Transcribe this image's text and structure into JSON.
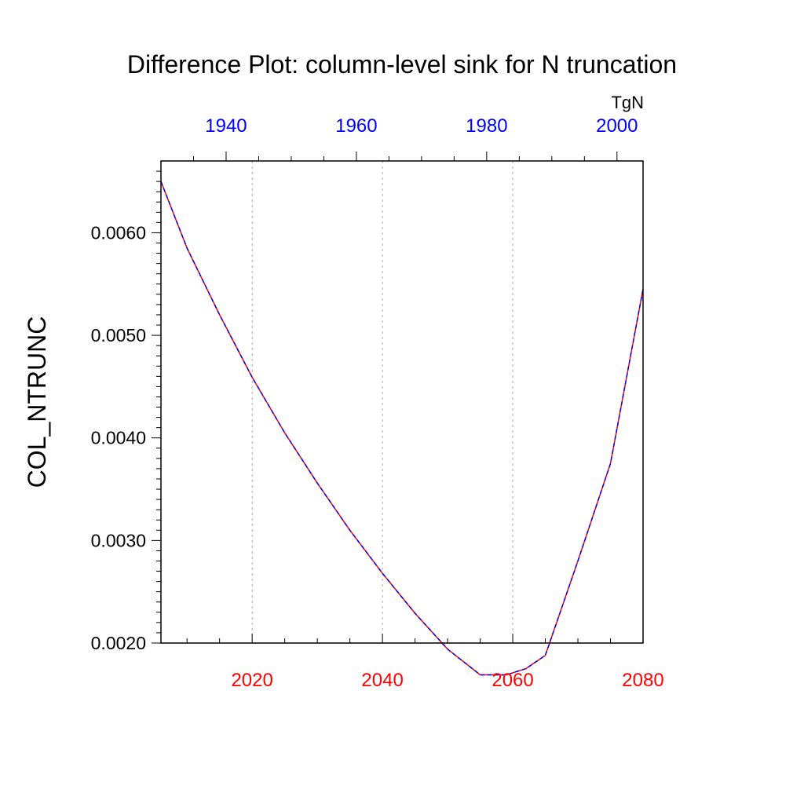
{
  "chart_data": {
    "type": "line",
    "title": "Difference Plot: column-level sink for N truncation",
    "ylabel": "COL_NTRUNC",
    "units": "TgN",
    "ylim": [
      0.002,
      0.0067
    ],
    "yticks": [
      "0.0020",
      "0.0030",
      "0.0040",
      "0.0050",
      "0.0060"
    ],
    "bottom_axis": {
      "xlim": [
        2006,
        2080
      ],
      "ticks": [
        "2020",
        "2040",
        "2060",
        "2080"
      ],
      "color": "#ff0000"
    },
    "top_axis": {
      "xlim": [
        1930,
        2004
      ],
      "ticks": [
        "1940",
        "1960",
        "1980",
        "2000"
      ],
      "color": "#0000ff"
    },
    "grid": "vertical dotted",
    "series": [
      {
        "color": "#ff0000",
        "style": "solid",
        "axis": "bottom",
        "x": [
          2006,
          2010,
          2015,
          2020,
          2025,
          2030,
          2035,
          2040,
          2045,
          2050,
          2055,
          2059,
          2062,
          2065,
          2070,
          2075,
          2080
        ],
        "y": [
          0.0065,
          0.00585,
          0.0052,
          0.00459,
          0.00405,
          0.00356,
          0.0031,
          0.00268,
          0.00229,
          0.00194,
          0.00169,
          0.00169,
          0.00175,
          0.00188,
          0.0028,
          0.00375,
          0.00545
        ]
      },
      {
        "color": "#0000ff",
        "style": "dashed",
        "axis": "bottom",
        "x": [
          2006,
          2010,
          2015,
          2020,
          2025,
          2030,
          2035,
          2040,
          2045,
          2050,
          2055,
          2059,
          2062,
          2065,
          2070,
          2075,
          2080
        ],
        "y": [
          0.0065,
          0.00585,
          0.0052,
          0.00459,
          0.00405,
          0.00356,
          0.0031,
          0.00268,
          0.00229,
          0.00194,
          0.00169,
          0.00169,
          0.00175,
          0.00188,
          0.0028,
          0.00375,
          0.00545
        ]
      }
    ]
  }
}
